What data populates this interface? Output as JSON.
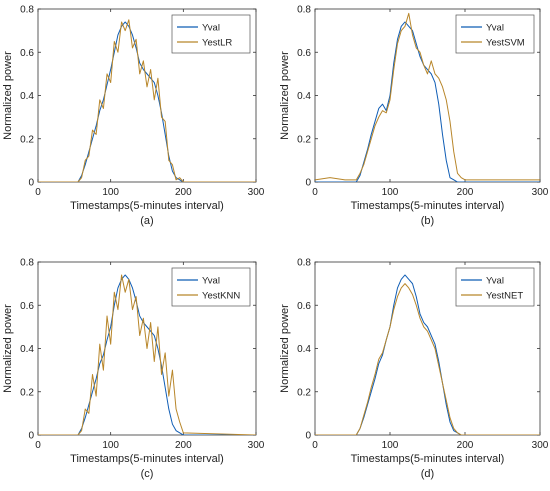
{
  "colors": {
    "actual": "#0f5db5",
    "estimate": "#b8862a",
    "estimate_lr": "#b8862a",
    "axis": "#333333",
    "frame": "#333333",
    "legend_border": "#555555"
  },
  "chart_data": [
    {
      "type": "line",
      "caption": "(a)",
      "xlabel": "Timestamps(5-minutes interval)",
      "ylabel": "Normalized power",
      "xlim": [
        0,
        300
      ],
      "ylim": [
        0,
        0.8
      ],
      "xticks": [
        "0",
        "100",
        "200",
        "300"
      ],
      "yticks": [
        "0",
        "0.2",
        "0.4",
        "0.6",
        "0.8"
      ],
      "grid": false,
      "legend_position": "top-right",
      "series": [
        {
          "name": "Yval",
          "x": [
            0,
            55,
            60,
            65,
            70,
            75,
            80,
            85,
            90,
            95,
            100,
            105,
            110,
            115,
            120,
            125,
            130,
            135,
            140,
            145,
            150,
            155,
            160,
            165,
            170,
            175,
            180,
            185,
            190,
            195,
            200,
            300
          ],
          "y": [
            0,
            0,
            0.03,
            0.08,
            0.14,
            0.2,
            0.26,
            0.33,
            0.38,
            0.45,
            0.52,
            0.6,
            0.68,
            0.72,
            0.74,
            0.72,
            0.68,
            0.62,
            0.55,
            0.52,
            0.5,
            0.48,
            0.46,
            0.4,
            0.32,
            0.22,
            0.12,
            0.05,
            0.02,
            0.01,
            0,
            0
          ]
        },
        {
          "name": "YestLR",
          "x": [
            0,
            55,
            60,
            65,
            70,
            75,
            80,
            85,
            90,
            95,
            100,
            105,
            110,
            115,
            120,
            125,
            130,
            135,
            140,
            145,
            150,
            155,
            160,
            165,
            170,
            175,
            180,
            185,
            190,
            195,
            200,
            300
          ],
          "y": [
            0,
            0,
            0.02,
            0.1,
            0.12,
            0.24,
            0.22,
            0.38,
            0.34,
            0.5,
            0.46,
            0.65,
            0.6,
            0.74,
            0.7,
            0.75,
            0.62,
            0.66,
            0.5,
            0.56,
            0.44,
            0.52,
            0.38,
            0.48,
            0.3,
            0.28,
            0.1,
            0.08,
            0.01,
            0.02,
            0,
            0
          ]
        }
      ]
    },
    {
      "type": "line",
      "caption": "(b)",
      "xlabel": "Timestamps(5-minutes interval)",
      "ylabel": "Normalized power",
      "xlim": [
        0,
        300
      ],
      "ylim": [
        0,
        0.8
      ],
      "xticks": [
        "0",
        "100",
        "200",
        "300"
      ],
      "yticks": [
        "0",
        "0.2",
        "0.4",
        "0.6",
        "0.8"
      ],
      "grid": false,
      "legend_position": "top-right",
      "series": [
        {
          "name": "Yval",
          "x": [
            0,
            55,
            60,
            65,
            70,
            75,
            80,
            85,
            90,
            95,
            100,
            105,
            110,
            115,
            120,
            125,
            130,
            135,
            140,
            145,
            150,
            155,
            160,
            165,
            170,
            175,
            180,
            185,
            190,
            195,
            200,
            300
          ],
          "y": [
            0,
            0,
            0.03,
            0.09,
            0.15,
            0.22,
            0.28,
            0.34,
            0.36,
            0.33,
            0.4,
            0.55,
            0.66,
            0.72,
            0.74,
            0.72,
            0.7,
            0.64,
            0.58,
            0.54,
            0.52,
            0.5,
            0.46,
            0.36,
            0.22,
            0.1,
            0.02,
            0.01,
            0,
            0,
            0,
            0
          ]
        },
        {
          "name": "YestSVM",
          "x": [
            0,
            20,
            40,
            55,
            60,
            65,
            70,
            75,
            80,
            85,
            90,
            95,
            100,
            105,
            110,
            115,
            120,
            125,
            130,
            135,
            140,
            145,
            150,
            155,
            160,
            165,
            170,
            175,
            180,
            185,
            190,
            195,
            200,
            250,
            300
          ],
          "y": [
            0.01,
            0.02,
            0.01,
            0.01,
            0.04,
            0.08,
            0.14,
            0.2,
            0.26,
            0.3,
            0.33,
            0.32,
            0.38,
            0.52,
            0.64,
            0.7,
            0.72,
            0.78,
            0.68,
            0.62,
            0.6,
            0.54,
            0.5,
            0.56,
            0.5,
            0.48,
            0.44,
            0.38,
            0.28,
            0.14,
            0.04,
            0.02,
            0.01,
            0.01,
            0.01
          ]
        }
      ]
    },
    {
      "type": "line",
      "caption": "(c)",
      "xlabel": "Timestamps(5-minutes interval)",
      "ylabel": "Normalized power",
      "xlim": [
        0,
        300
      ],
      "ylim": [
        0,
        0.8
      ],
      "xticks": [
        "0",
        "100",
        "200",
        "300"
      ],
      "yticks": [
        "0",
        "0.2",
        "0.4",
        "0.6",
        "0.8"
      ],
      "grid": false,
      "legend_position": "top-right",
      "series": [
        {
          "name": "Yval",
          "x": [
            0,
            55,
            60,
            65,
            70,
            75,
            80,
            85,
            90,
            95,
            100,
            105,
            110,
            115,
            120,
            125,
            130,
            135,
            140,
            145,
            150,
            155,
            160,
            165,
            170,
            175,
            180,
            185,
            190,
            195,
            200,
            300
          ],
          "y": [
            0,
            0,
            0.03,
            0.08,
            0.14,
            0.2,
            0.26,
            0.33,
            0.37,
            0.44,
            0.5,
            0.6,
            0.68,
            0.72,
            0.74,
            0.72,
            0.68,
            0.62,
            0.55,
            0.52,
            0.5,
            0.48,
            0.46,
            0.4,
            0.32,
            0.22,
            0.12,
            0.05,
            0.02,
            0.01,
            0,
            0
          ]
        },
        {
          "name": "YestKNN",
          "x": [
            0,
            55,
            60,
            65,
            70,
            75,
            80,
            85,
            90,
            95,
            100,
            105,
            110,
            115,
            120,
            125,
            130,
            135,
            140,
            145,
            150,
            155,
            160,
            165,
            170,
            175,
            180,
            185,
            190,
            195,
            200,
            300
          ],
          "y": [
            0,
            0,
            0.02,
            0.12,
            0.1,
            0.28,
            0.18,
            0.42,
            0.3,
            0.55,
            0.42,
            0.66,
            0.58,
            0.74,
            0.66,
            0.72,
            0.58,
            0.64,
            0.46,
            0.54,
            0.4,
            0.52,
            0.34,
            0.5,
            0.28,
            0.38,
            0.18,
            0.3,
            0.12,
            0.06,
            0.01,
            0
          ]
        }
      ]
    },
    {
      "type": "line",
      "caption": "(d)",
      "xlabel": "Timestamps(5-minutes interval)",
      "ylabel": "Normalized power",
      "xlim": [
        0,
        300
      ],
      "ylim": [
        0,
        0.8
      ],
      "xticks": [
        "0",
        "100",
        "200",
        "300"
      ],
      "yticks": [
        "0",
        "0.2",
        "0.4",
        "0.6",
        "0.8"
      ],
      "grid": false,
      "legend_position": "top-right",
      "series": [
        {
          "name": "Yval",
          "x": [
            0,
            55,
            60,
            65,
            70,
            75,
            80,
            85,
            90,
            95,
            100,
            105,
            110,
            115,
            120,
            125,
            130,
            135,
            140,
            145,
            150,
            155,
            160,
            165,
            170,
            175,
            180,
            185,
            190,
            195,
            200,
            300
          ],
          "y": [
            0,
            0,
            0.03,
            0.08,
            0.14,
            0.2,
            0.26,
            0.33,
            0.37,
            0.44,
            0.5,
            0.6,
            0.68,
            0.72,
            0.74,
            0.72,
            0.7,
            0.64,
            0.56,
            0.52,
            0.5,
            0.46,
            0.42,
            0.34,
            0.24,
            0.14,
            0.06,
            0.02,
            0.01,
            0,
            0,
            0
          ]
        },
        {
          "name": "YestNET",
          "x": [
            0,
            55,
            60,
            65,
            70,
            75,
            80,
            85,
            90,
            95,
            100,
            105,
            110,
            115,
            120,
            125,
            130,
            135,
            140,
            145,
            150,
            155,
            160,
            165,
            170,
            175,
            180,
            185,
            190,
            195,
            200,
            300
          ],
          "y": [
            0,
            0,
            0.03,
            0.09,
            0.15,
            0.22,
            0.28,
            0.35,
            0.38,
            0.44,
            0.5,
            0.58,
            0.64,
            0.68,
            0.7,
            0.68,
            0.65,
            0.6,
            0.54,
            0.5,
            0.48,
            0.44,
            0.4,
            0.32,
            0.24,
            0.16,
            0.08,
            0.03,
            0.01,
            0,
            0,
            0
          ]
        }
      ]
    }
  ]
}
